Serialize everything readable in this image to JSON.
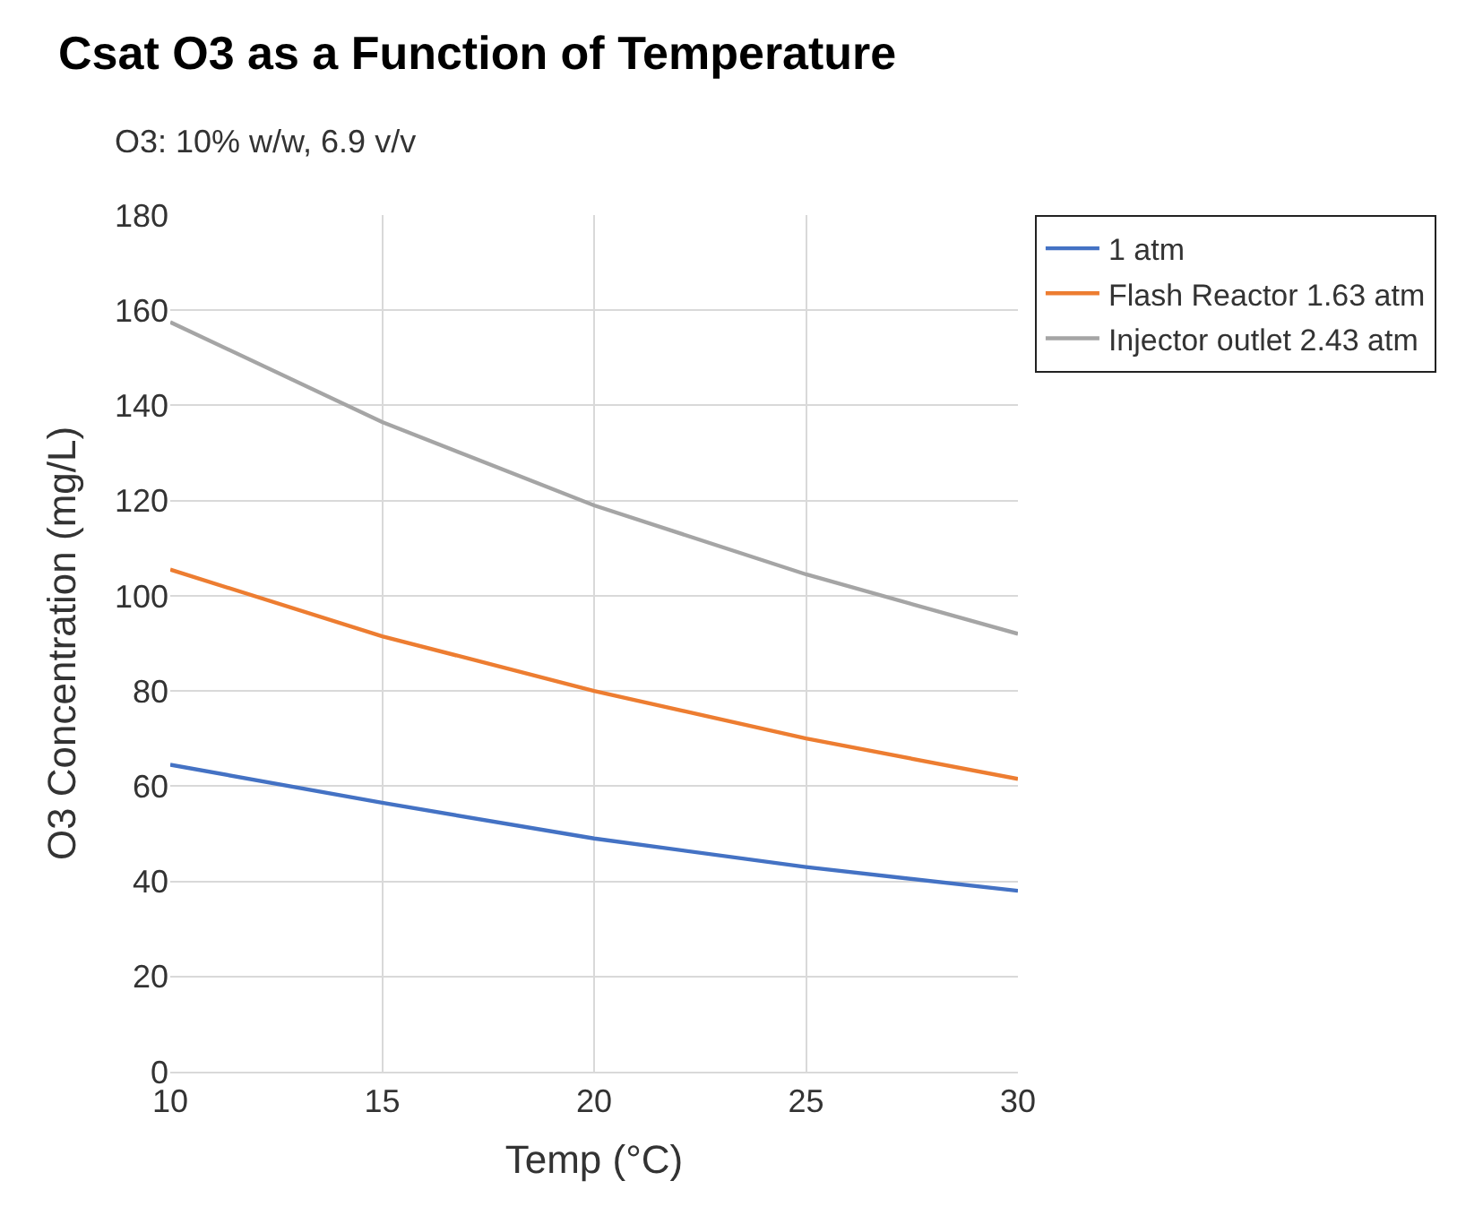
{
  "chart_data": {
    "type": "line",
    "title": "Csat O3 as a Function of Temperature",
    "subtitle": "O3: 10% w/w, 6.9 v/v",
    "xlabel": "Temp (°C)",
    "ylabel": "O3 Concentration (mg/L)",
    "x": [
      10,
      15,
      20,
      25,
      30
    ],
    "series": [
      {
        "name": "1 atm",
        "color": "#4472c4",
        "values": [
          64.5,
          56.5,
          49,
          43,
          38
        ]
      },
      {
        "name": "Flash Reactor 1.63 atm",
        "color": "#ed7d31",
        "values": [
          105.5,
          91.5,
          80,
          70,
          61.5
        ]
      },
      {
        "name": "Injector outlet 2.43 atm",
        "color": "#a5a5a5",
        "values": [
          157.5,
          136.5,
          119,
          104.5,
          92
        ]
      }
    ],
    "xlim": [
      10,
      30
    ],
    "xticks": [
      10,
      15,
      20,
      25,
      30
    ],
    "ylim": [
      0,
      180
    ],
    "yticks": [
      0,
      20,
      40,
      60,
      80,
      100,
      120,
      140,
      160,
      180
    ],
    "grid": true,
    "legend": "right",
    "marker": "none",
    "line_style": "solid"
  }
}
